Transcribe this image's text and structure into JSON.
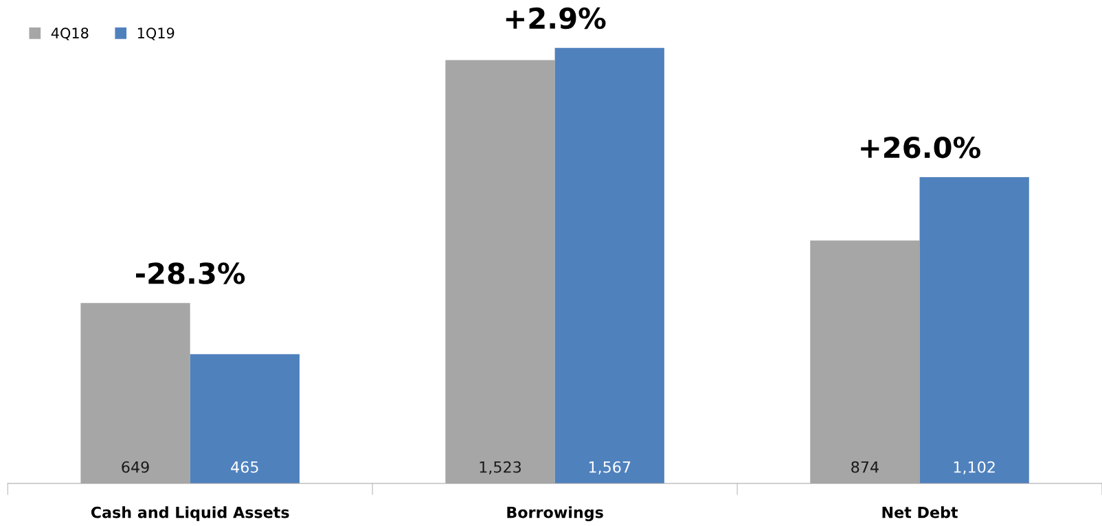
{
  "chart_data": {
    "type": "bar",
    "categories": [
      "Cash and Liquid Assets",
      "Borrowings",
      "Net Debt"
    ],
    "series": [
      {
        "name": "4Q18",
        "color": "#a6a6a6",
        "values": [
          649,
          1523,
          874
        ],
        "value_labels": [
          "649",
          "1,523",
          "874"
        ]
      },
      {
        "name": "1Q19",
        "color": "#4f81bd",
        "values": [
          465,
          1567,
          1102
        ],
        "value_labels": [
          "465",
          "1,567",
          "1,102"
        ]
      }
    ],
    "annotations": [
      {
        "text": "-28.3%",
        "x": "Cash and Liquid Assets",
        "y": 649
      },
      {
        "text": "+2.9%",
        "x": "Borrowings",
        "y": 1567
      },
      {
        "text": "+26.0%",
        "x": "Net Debt",
        "y": 1102
      }
    ],
    "legend": "top left",
    "grid": false,
    "tick_labels": "x"
  }
}
